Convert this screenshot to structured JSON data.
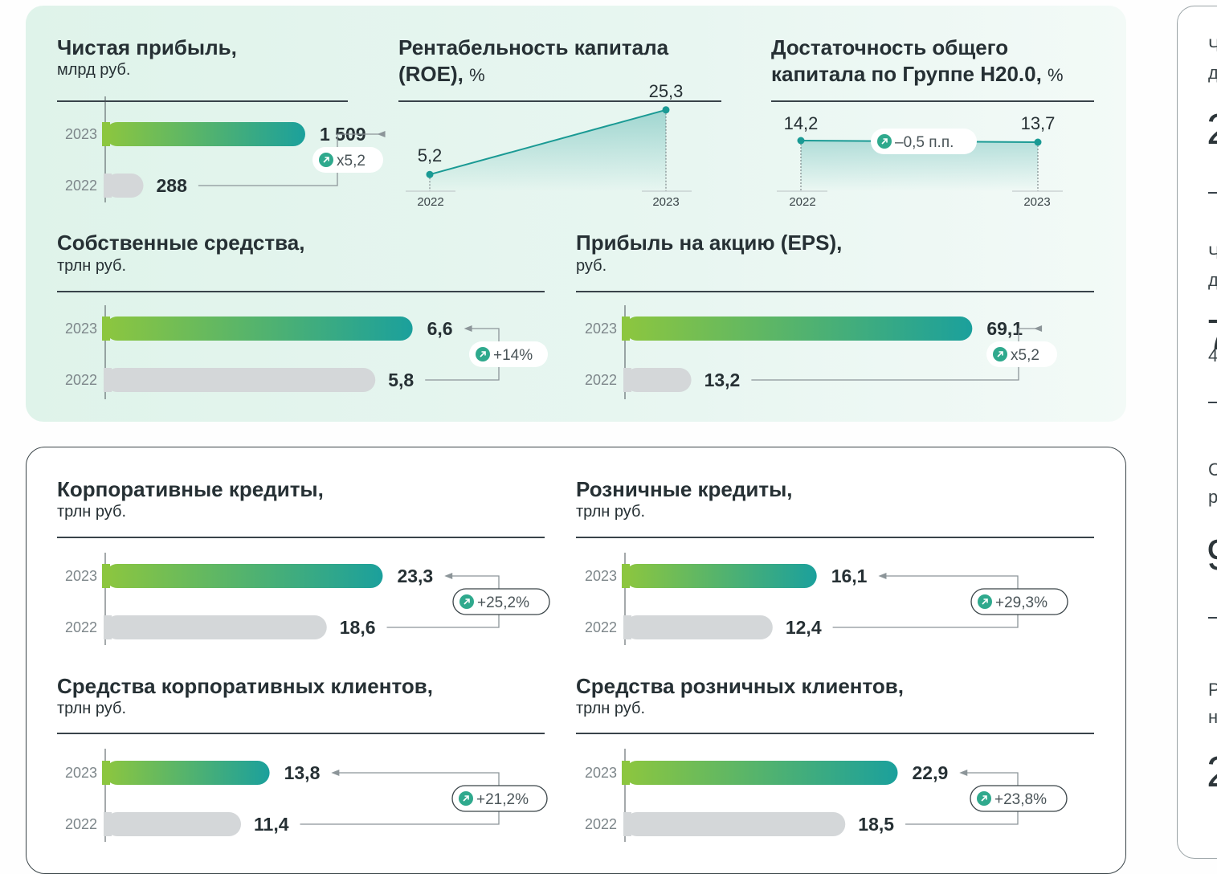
{
  "colors": {
    "bar_start": "#8cc63f",
    "bar_end": "#1ba09c",
    "bar_prev": "#d4d7d9",
    "line": "#1a9a94",
    "badge_icon": "#2fa98d"
  },
  "sidebar": {
    "fragments": [
      "Ч",
      "д",
      "2",
      "Ч",
      "д",
      "7",
      "4",
      "С",
      "р",
      "9",
      "Р",
      "н",
      "2"
    ]
  },
  "chart_data": [
    {
      "id": "net-profit",
      "type": "bar",
      "title": "Чистая прибыль,",
      "unit": "млрд руб.",
      "categories": [
        "2023",
        "2022"
      ],
      "values": [
        1509,
        288
      ],
      "labels": [
        "1 509",
        "288"
      ],
      "change": "x5,2",
      "xmax": 8000
    },
    {
      "id": "roe",
      "type": "line",
      "title": "Рентабельность капитала (ROE),",
      "unit": "%",
      "title_lines": [
        "Рентабельность капитала",
        "(ROE),"
      ],
      "x": [
        "2022",
        "2023"
      ],
      "values": [
        5.2,
        25.3
      ],
      "labels": [
        "5,2",
        "25,3"
      ],
      "ylim": [
        0,
        30
      ]
    },
    {
      "id": "capital-adequacy",
      "type": "line",
      "title": "Достаточность общего капитала по Группе Н20.0,",
      "unit": "%",
      "title_lines": [
        "Достаточность общего",
        "капитала по Группе Н20.0,"
      ],
      "x": [
        "2022",
        "2023"
      ],
      "values": [
        14.2,
        13.7
      ],
      "labels": [
        "14,2",
        "13,7"
      ],
      "change": "–0,5 п.п."
    },
    {
      "id": "equity",
      "type": "bar",
      "title": "Собственные средства,",
      "unit": "трлн руб.",
      "categories": [
        "2023",
        "2022"
      ],
      "values": [
        6.6,
        5.8
      ],
      "labels": [
        "6,6",
        "5,8"
      ],
      "change": "+14%",
      "xmax": 7.4
    },
    {
      "id": "eps",
      "type": "bar",
      "title": "Прибыль на акцию (EPS),",
      "unit": "руб.",
      "categories": [
        "2023",
        "2022"
      ],
      "values": [
        69.1,
        13.2
      ],
      "labels": [
        "69,1",
        "13,2"
      ],
      "change": "x5,2",
      "xmax": 74
    },
    {
      "id": "corp-loans",
      "type": "bar",
      "title": "Корпоративные кредиты,",
      "unit": "трлн руб.",
      "categories": [
        "2023",
        "2022"
      ],
      "values": [
        23.3,
        18.6
      ],
      "labels": [
        "23,3",
        "18,6"
      ],
      "change": "+25,2%",
      "xmax": 25.9
    },
    {
      "id": "retail-loans",
      "type": "bar",
      "title": "Розничные кредиты,",
      "unit": "трлн руб.",
      "categories": [
        "2023",
        "2022"
      ],
      "values": [
        16.1,
        12.4
      ],
      "labels": [
        "16,1",
        "12,4"
      ],
      "change": "+29,3%",
      "xmax": 25.9
    },
    {
      "id": "corp-funds",
      "type": "bar",
      "title": "Средства корпоративных клиентов,",
      "unit": "трлн руб.",
      "categories": [
        "2023",
        "2022"
      ],
      "values": [
        13.8,
        11.4
      ],
      "labels": [
        "13,8",
        "11,4"
      ],
      "change": "+21,2%",
      "xmax": 25.9
    },
    {
      "id": "retail-funds",
      "type": "bar",
      "title": "Средства розничных клиентов,",
      "unit": "трлн руб.",
      "categories": [
        "2023",
        "2022"
      ],
      "values": [
        22.9,
        18.5
      ],
      "labels": [
        "22,9",
        "18,5"
      ],
      "change": "+23,8%",
      "xmax": 25.9
    }
  ]
}
